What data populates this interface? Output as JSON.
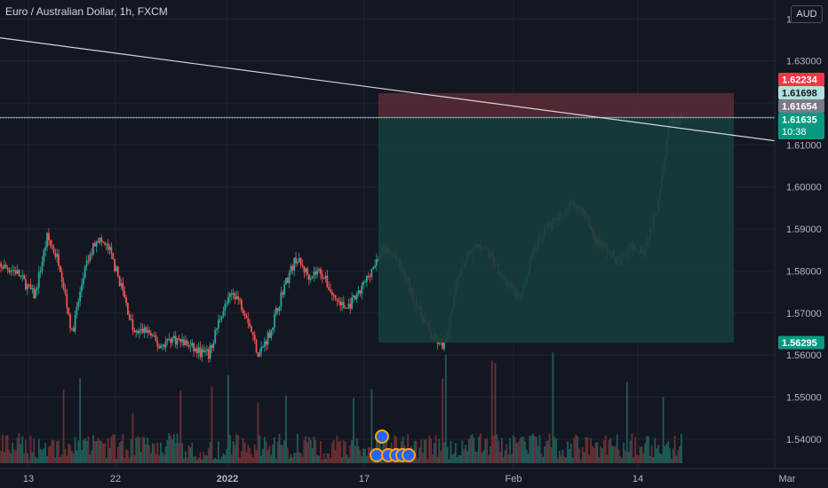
{
  "header": {
    "symbol_title": "Euro / Australian Dollar, 1h, FXCM",
    "currency_badge": "AUD"
  },
  "colors": {
    "background": "#131722",
    "grid": "#1f2430",
    "candle_up": "#26a69a",
    "candle_down": "#ef5350",
    "stop_zone": "#5b2c35",
    "target_zone": "#163c3b",
    "trendline": "#d1d4dc",
    "price_line": "#9aa0aa"
  },
  "price_axis": {
    "ticks": [
      "1.64000",
      "1.63000",
      "1.62000",
      "1.61000",
      "1.60000",
      "1.59000",
      "1.58000",
      "1.57000",
      "1.56000",
      "1.55000",
      "1.54000"
    ],
    "tick_values": [
      1.64,
      1.63,
      1.62,
      1.61,
      1.6,
      1.59,
      1.58,
      1.57,
      1.56,
      1.55,
      1.54
    ],
    "labels": [
      {
        "text": "1.62234",
        "value": 1.62234,
        "color": "#f23645",
        "text_color": "#ffffff"
      },
      {
        "text": "1.61698",
        "value": 1.61698,
        "color": "#b2dfdb",
        "text_color": "#131722"
      },
      {
        "text": "1.61654",
        "value": 1.61654,
        "color": "#787b86",
        "text_color": "#ffffff"
      },
      {
        "text": "1.61635",
        "value": 1.61635,
        "color": "#089981",
        "text_color": "#ffffff",
        "sub": "10:38"
      },
      {
        "text": "1.56295",
        "value": 1.56295,
        "color": "#089981",
        "text_color": "#ffffff"
      }
    ]
  },
  "time_axis": {
    "ticks": [
      {
        "label": "13",
        "t": 0.03,
        "bold": false
      },
      {
        "label": "22",
        "t": 0.1,
        "bold": false
      },
      {
        "label": "2022",
        "t": 0.19,
        "bold": true
      },
      {
        "label": "17",
        "t": 0.3,
        "bold": false
      },
      {
        "label": "Feb",
        "t": 0.42,
        "bold": false
      },
      {
        "label": "14",
        "t": 0.52,
        "bold": false
      },
      {
        "label": "Mar",
        "t": 0.64,
        "bold": false
      }
    ]
  },
  "position_tool": {
    "entry": 1.61654,
    "stop": 1.62234,
    "target": 1.56295
  },
  "trendline": {
    "start_price": 1.6355,
    "end_price": 1.611
  },
  "chart_data": {
    "type": "candlestick",
    "title": "Euro / Australian Dollar, 1h, FXCM",
    "ylim": [
      1.533,
      1.6445
    ],
    "xlabel": "",
    "ylabel": "",
    "series": [
      {
        "name": "EURAUD",
        "anchors": [
          [
            0,
            1.582
          ],
          [
            0.02,
            1.58
          ],
          [
            0.035,
            1.574
          ],
          [
            0.045,
            1.588
          ],
          [
            0.055,
            1.582
          ],
          [
            0.065,
            1.565
          ],
          [
            0.075,
            1.58
          ],
          [
            0.085,
            1.588
          ],
          [
            0.095,
            1.585
          ],
          [
            0.105,
            1.576
          ],
          [
            0.115,
            1.565
          ],
          [
            0.125,
            1.566
          ],
          [
            0.135,
            1.562
          ],
          [
            0.145,
            1.564
          ],
          [
            0.155,
            1.563
          ],
          [
            0.165,
            1.561
          ],
          [
            0.175,
            1.56
          ],
          [
            0.185,
            1.57
          ],
          [
            0.195,
            1.575
          ],
          [
            0.205,
            1.57
          ],
          [
            0.215,
            1.56
          ],
          [
            0.225,
            1.566
          ],
          [
            0.235,
            1.576
          ],
          [
            0.245,
            1.583
          ],
          [
            0.255,
            1.579
          ],
          [
            0.265,
            1.58
          ],
          [
            0.275,
            1.574
          ],
          [
            0.285,
            1.571
          ],
          [
            0.295,
            1.574
          ],
          [
            0.305,
            1.58
          ],
          [
            0.315,
            1.585
          ],
          [
            0.325,
            1.583
          ],
          [
            0.335,
            1.577
          ],
          [
            0.345,
            1.57
          ],
          [
            0.355,
            1.564
          ],
          [
            0.365,
            1.562
          ],
          [
            0.375,
            1.579
          ],
          [
            0.385,
            1.585
          ],
          [
            0.395,
            1.586
          ],
          [
            0.405,
            1.582
          ],
          [
            0.415,
            1.577
          ],
          [
            0.425,
            1.573
          ],
          [
            0.435,
            1.584
          ],
          [
            0.445,
            1.59
          ],
          [
            0.455,
            1.592
          ],
          [
            0.465,
            1.596
          ],
          [
            0.475,
            1.595
          ],
          [
            0.485,
            1.588
          ],
          [
            0.495,
            1.585
          ],
          [
            0.505,
            1.582
          ],
          [
            0.515,
            1.586
          ],
          [
            0.525,
            1.585
          ],
          [
            0.535,
            1.595
          ],
          [
            0.545,
            1.615
          ],
          [
            0.555,
            1.616
          ]
        ]
      }
    ]
  }
}
